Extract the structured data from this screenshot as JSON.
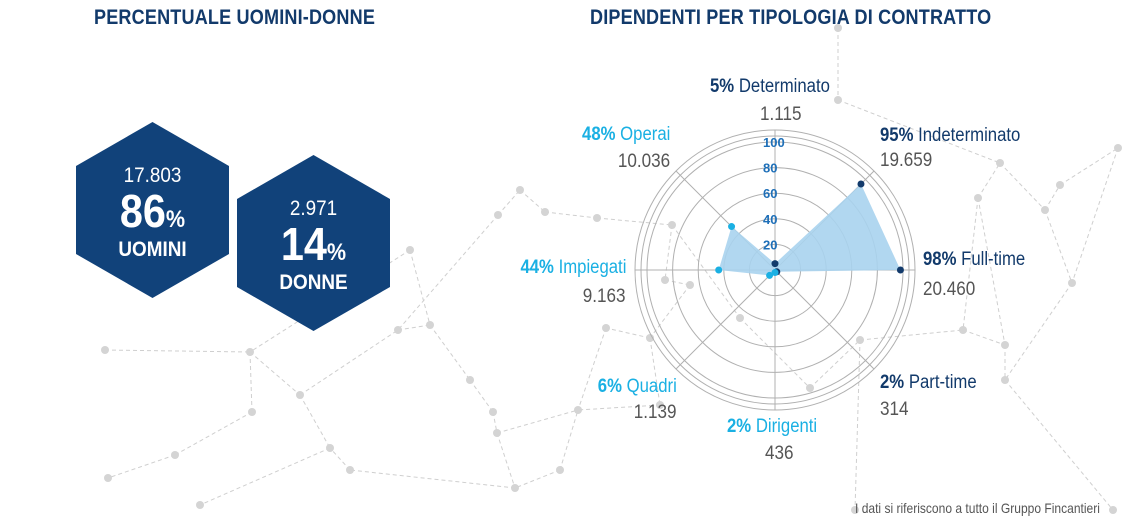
{
  "left_title": "PERCENTUALE UOMINI-DONNE",
  "right_title": "DIPENDENTI PER TIPOLOGIA DI CONTRATTO",
  "men": {
    "count": "17.803",
    "percent": "86",
    "symbol": "%",
    "label": "UOMINI"
  },
  "women": {
    "count": "2.971",
    "percent": "14",
    "symbol": "%",
    "label": "DONNE"
  },
  "note": "I dati si riferiscono a tutto il Gruppo Fincantieri",
  "colors": {
    "navy": "#11427a",
    "dark_text": "#123a6b",
    "light_text": "#1ab0e3",
    "fill": "#a9d3ee"
  },
  "chart_data": {
    "type": "radar",
    "r_ticks": [
      "20",
      "40",
      "60",
      "80",
      "100"
    ],
    "rlim": [
      0,
      100
    ],
    "categories": [
      {
        "name": "Determinato",
        "percent": 5,
        "percent_label": "5%",
        "value": "1.115",
        "group": "dark"
      },
      {
        "name": "Indeterminato",
        "percent": 95,
        "percent_label": "95%",
        "value": "19.659",
        "group": "dark"
      },
      {
        "name": "Full-time",
        "percent": 98,
        "percent_label": "98%",
        "value": "20.460",
        "group": "dark"
      },
      {
        "name": "Part-time",
        "percent": 2,
        "percent_label": "2%",
        "value": "314",
        "group": "dark"
      },
      {
        "name": "Dirigenti",
        "percent": 2,
        "percent_label": "2%",
        "value": "436",
        "group": "light"
      },
      {
        "name": "Quadri",
        "percent": 6,
        "percent_label": "6%",
        "value": "1.139",
        "group": "light"
      },
      {
        "name": "Impiegati",
        "percent": 44,
        "percent_label": "44%",
        "value": "9.163",
        "group": "light"
      },
      {
        "name": "Operai",
        "percent": 48,
        "percent_label": "48%",
        "value": "10.036",
        "group": "light"
      }
    ]
  }
}
